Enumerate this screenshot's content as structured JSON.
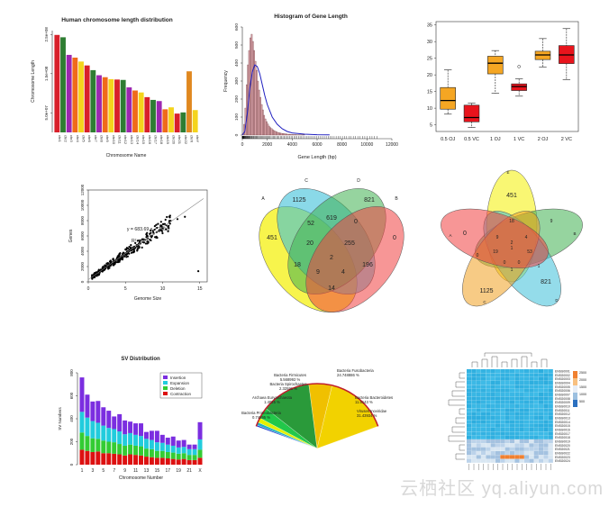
{
  "colors": {
    "axis": "#333333",
    "bar_red": "#c8122e",
    "hist": "#d7a0a6",
    "curve": "#2020c0",
    "box_orange": "#f5a623",
    "box_red": "#e8141c",
    "venn": [
      "#f4f000",
      "#3cc0d8",
      "#3fb050",
      "#f04040",
      "#f0a020"
    ],
    "sv": [
      "#7b2ee0",
      "#22ccdd",
      "#33cc33",
      "#dd1111"
    ]
  },
  "chart_data": [
    {
      "type": "bar",
      "title": "Human chromosome length distribution",
      "xlabel": "Chromosome Name",
      "ylabel": "Chromosome Length",
      "ytick_labels": [
        "5.0e+07",
        "1.5e+08",
        "2.5e+08"
      ],
      "ylim": [
        0,
        260000000
      ],
      "categories": [
        "chr1",
        "chr2",
        "chr3",
        "chr4",
        "chr5",
        "chr6",
        "chr7",
        "chr8",
        "chr9",
        "chr10",
        "chr11",
        "chr12",
        "chr13",
        "chr14",
        "chr15",
        "chr16",
        "chr17",
        "chr18",
        "chr19",
        "chr20",
        "chr21",
        "chr22",
        "chrX",
        "chrY"
      ],
      "values": [
        249,
        243,
        198,
        191,
        181,
        171,
        159,
        146,
        141,
        136,
        135,
        134,
        115,
        107,
        102,
        90,
        83,
        80,
        59,
        64,
        48,
        51,
        156,
        57
      ],
      "bar_colors": [
        "#d8202a",
        "#2e7d32",
        "#9c27b0",
        "#f06a1a",
        "#f4d41c",
        "#d8202a",
        "#2e7d32",
        "#9c27b0",
        "#f06a1a",
        "#f4d41c",
        "#d8202a",
        "#2e7d32",
        "#9c27b0",
        "#f06a1a",
        "#f4d41c",
        "#d8202a",
        "#2e7d32",
        "#9c27b0",
        "#f06a1a",
        "#f4d41c",
        "#d8202a",
        "#2e7d32",
        "#e08820",
        "#f4d41c"
      ]
    },
    {
      "type": "bar",
      "title": "Histogram of Gene Length",
      "xlabel": "Gene Length (bp)",
      "ylabel": "Frequency",
      "xlim": [
        0,
        12000
      ],
      "ylim": [
        0,
        600
      ],
      "xticks": [
        0,
        2000,
        4000,
        6000,
        8000,
        10000,
        12000
      ],
      "yticks": [
        0,
        100,
        200,
        300,
        400,
        500,
        600
      ],
      "bin_width": 100,
      "bin_start": 0,
      "values": [
        10,
        60,
        150,
        280,
        390,
        470,
        540,
        560,
        520,
        470,
        410,
        360,
        300,
        250,
        210,
        170,
        140,
        110,
        90,
        75,
        62,
        50,
        42,
        36,
        30,
        25,
        21,
        18,
        15,
        13,
        11,
        10,
        9,
        8,
        7,
        6,
        5,
        5,
        4,
        4,
        3,
        3,
        3,
        2,
        2,
        2,
        2,
        1,
        1,
        1
      ],
      "density_curve": {
        "x": [
          0,
          200,
          400,
          600,
          800,
          1000,
          1200,
          1400,
          1600,
          1800,
          2000,
          2400,
          2800,
          3200,
          3600,
          4000,
          5000,
          6000,
          7000
        ],
        "y": [
          0,
          20,
          120,
          260,
          350,
          390,
          380,
          340,
          280,
          220,
          170,
          100,
          60,
          35,
          20,
          12,
          5,
          2,
          1
        ]
      }
    },
    {
      "type": "box",
      "title": "",
      "categories": [
        "0.5 OJ",
        "0.5 VC",
        "1 OJ",
        "1 VC",
        "2 OJ",
        "2 VC"
      ],
      "ylim": [
        3,
        36
      ],
      "yticks": [
        5,
        10,
        15,
        20,
        25,
        30,
        35
      ],
      "boxes": [
        {
          "min": 8.2,
          "q1": 9.7,
          "median": 12.3,
          "q3": 16.2,
          "max": 21.5,
          "color": "orange"
        },
        {
          "min": 4.2,
          "q1": 5.9,
          "median": 7.2,
          "q3": 10.9,
          "max": 11.5,
          "color": "red"
        },
        {
          "min": 14.5,
          "q1": 20.3,
          "median": 23.5,
          "q3": 25.6,
          "max": 27.3,
          "color": "orange"
        },
        {
          "min": 13.6,
          "q1": 15.3,
          "median": 16.5,
          "q3": 17.3,
          "max": 18.8,
          "outliers": [
            22.5
          ],
          "color": "red"
        },
        {
          "min": 22.4,
          "q1": 24.6,
          "median": 26.0,
          "q3": 27.1,
          "max": 30.9,
          "color": "orange"
        },
        {
          "min": 18.5,
          "q1": 23.4,
          "median": 26.0,
          "q3": 28.8,
          "max": 33.9,
          "color": "red"
        }
      ]
    },
    {
      "type": "scatter",
      "xlabel": "Genome Size",
      "ylabel": "Genes",
      "xlim": [
        0,
        16
      ],
      "ylim": [
        0,
        12000
      ],
      "xticks": [
        0,
        5,
        10,
        15
      ],
      "yticks": [
        0,
        2000,
        4000,
        6000,
        8000,
        10000,
        12000
      ],
      "annotation": [
        "y = 683.69 x + 286.8",
        "R² = 0.97"
      ],
      "fit": {
        "slope": 683.69,
        "intercept": 286.8
      },
      "x": [
        0.6,
        0.9,
        1.1,
        1.3,
        1.5,
        1.7,
        1.9,
        2.0,
        2.2,
        2.4,
        2.5,
        2.7,
        2.9,
        3.0,
        3.2,
        3.4,
        3.5,
        3.7,
        3.9,
        4.0,
        4.2,
        4.4,
        4.5,
        4.7,
        4.9,
        5.0,
        5.2,
        5.4,
        5.5,
        5.7,
        5.9,
        6.0,
        6.2,
        6.5,
        6.8,
        7.0,
        7.3,
        7.6,
        8.0,
        8.4,
        8.8,
        9.2,
        9.6,
        10.0,
        10.5,
        11.0,
        12.0,
        13.0,
        14.8
      ],
      "y": [
        700,
        950,
        1000,
        1200,
        1350,
        1500,
        1500,
        1700,
        1800,
        1950,
        2000,
        2150,
        2300,
        2350,
        2400,
        2600,
        2700,
        2800,
        2900,
        3000,
        3200,
        3300,
        3300,
        3500,
        3600,
        3700,
        3900,
        4000,
        4000,
        4200,
        4300,
        4500,
        4600,
        4800,
        5000,
        5000,
        5200,
        5500,
        5700,
        6000,
        6300,
        6500,
        6800,
        7000,
        7400,
        7600,
        8200,
        8500,
        1400
      ]
    },
    {
      "type": "venn",
      "sets": [
        "A",
        "C",
        "D",
        "B"
      ],
      "region_labels": [
        "1125",
        "821",
        "451",
        "52",
        "619",
        "0",
        "0",
        "20",
        "255",
        "18",
        "2",
        "196",
        "9",
        "4",
        "14"
      ]
    },
    {
      "type": "venn",
      "sets": [
        "A",
        "B",
        "C",
        "D",
        "E"
      ],
      "region_labels": [
        "451",
        "0",
        "18",
        "9",
        "4",
        "2",
        "1",
        "19",
        "53",
        "0",
        "0",
        "1",
        "1125",
        "821",
        "9",
        "0",
        "1"
      ]
    },
    {
      "type": "bar",
      "title": "SV Distribution",
      "xlabel": "Chromosome Number",
      "ylabel": "SV Numbers",
      "ylim": [
        0,
        800
      ],
      "yticks": [
        0,
        200,
        400,
        600,
        800
      ],
      "xtick_labels": [
        "1",
        "3",
        "5",
        "7",
        "9",
        "11",
        "13",
        "15",
        "17",
        "19",
        "21",
        "X"
      ],
      "categories": [
        "1",
        "2",
        "3",
        "4",
        "5",
        "6",
        "7",
        "8",
        "9",
        "10",
        "11",
        "12",
        "13",
        "14",
        "15",
        "16",
        "17",
        "18",
        "19",
        "20",
        "21",
        "22",
        "X"
      ],
      "series": [
        {
          "name": "Contraction",
          "values": [
            130,
            120,
            110,
            115,
            100,
            100,
            95,
            90,
            80,
            90,
            85,
            80,
            70,
            65,
            60,
            60,
            55,
            50,
            45,
            50,
            40,
            40,
            60
          ]
        },
        {
          "name": "Deletion",
          "values": [
            150,
            130,
            120,
            110,
            110,
            100,
            100,
            90,
            85,
            85,
            80,
            80,
            70,
            70,
            60,
            60,
            55,
            55,
            50,
            50,
            45,
            45,
            70
          ]
        },
        {
          "name": "Expansion",
          "values": [
            180,
            160,
            150,
            140,
            130,
            120,
            115,
            110,
            100,
            100,
            95,
            90,
            85,
            80,
            75,
            70,
            65,
            60,
            55,
            55,
            50,
            50,
            90
          ]
        },
        {
          "name": "Insertion",
          "values": [
            300,
            200,
            170,
            190,
            160,
            150,
            110,
            150,
            120,
            100,
            100,
            110,
            60,
            80,
            100,
            70,
            60,
            80,
            60,
            60,
            40,
            40,
            150
          ]
        }
      ],
      "legend": [
        "Insertion",
        "Expansion",
        "Deletion",
        "Contraction"
      ],
      "legend_position": "top-right"
    },
    {
      "type": "pie",
      "labels": [
        "Bacteria Firmicutes",
        "Bacteria Fusobacteria",
        "Bacteria Spirochaetes",
        "Archaea Euryarchaeota",
        "Bacteria Proteobacteria",
        "Bacteria Bacteroidetes",
        "Viruses Inoviridae"
      ],
      "values": [
        5.568992,
        24.748886,
        2.32591,
        1.4025,
        0.74895,
        11.5143,
        31.43934
      ],
      "label_texts": [
        "Bacteria Firmicutes",
        "5.568992 %",
        "Bacteria Fusobacteria",
        "24.748886 %",
        "Bacteria Spirochaetes",
        "2.32591 %",
        "Archaea Euryarchaeota",
        "1.4025 %",
        "Bacteria Proteobacteria",
        "0.74895 %",
        "Bacteria Bacteroidetes",
        "11.5143 %",
        "Viruses Inoviridae",
        "31.43934 %"
      ],
      "slice_colors": [
        "#22c84a",
        "#2a9a3a",
        "#e6f000",
        "#20b0c0",
        "#2040d0",
        "#f0c000",
        "#f2d200"
      ]
    },
    {
      "type": "heatmap",
      "rows": 24,
      "cols": 18,
      "legend_ticks": [
        "2500",
        "2000",
        "1500",
        "1000",
        "500"
      ],
      "row_labels": [
        "ENSG0001",
        "ENSG0002",
        "ENSG0003",
        "ENSG0004",
        "ENSG0005",
        "ENSG0006",
        "ENSG0007",
        "ENSG0008",
        "ENSG0009",
        "ENSG0010",
        "ENSG0011",
        "ENSG0012",
        "ENSG0013",
        "ENSG0014",
        "ENSG0015",
        "ENSG0016",
        "ENSG0017",
        "ENSG0018",
        "ENSG0019",
        "ENSG0020",
        "ENSG0021",
        "ENSG0022",
        "ENSG0023",
        "ENSG0024"
      ]
    }
  ],
  "watermark": "云栖社区 yq.aliyun.com"
}
